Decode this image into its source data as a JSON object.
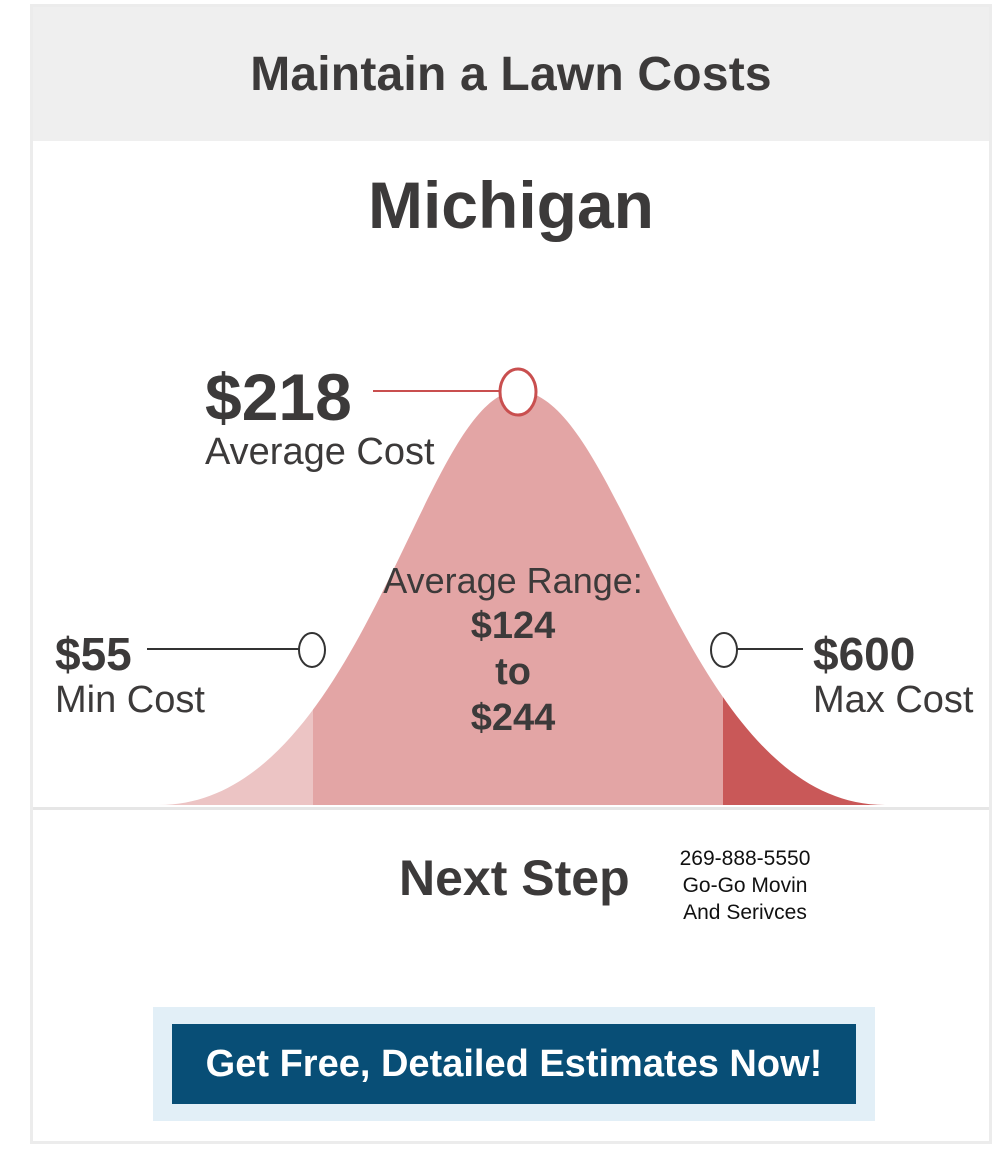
{
  "header": {
    "title": "Maintain a Lawn Costs"
  },
  "state": "Michigan",
  "chart_data": {
    "type": "area",
    "distribution": "bell-curve",
    "average": {
      "value": "$218",
      "label": "Average Cost"
    },
    "min": {
      "value": "$55",
      "label": "Min Cost"
    },
    "max": {
      "value": "$600",
      "label": "Max Cost"
    },
    "range": {
      "title": "Average Range:",
      "low": "$124",
      "connector": "to",
      "high": "$244"
    },
    "colors": {
      "left_tail": "#ecc4c4",
      "middle": "#e3a5a5",
      "right_tail": "#c95858",
      "marker_stroke": "#c94f4f"
    }
  },
  "next_step": {
    "title": "Next Step"
  },
  "contact": {
    "phone": "269-888-5550",
    "line2": "Go-Go Movin",
    "line3": "And Serivces"
  },
  "cta": {
    "label": "Get Free, Detailed Estimates Now!",
    "bg_color": "#084e76"
  }
}
